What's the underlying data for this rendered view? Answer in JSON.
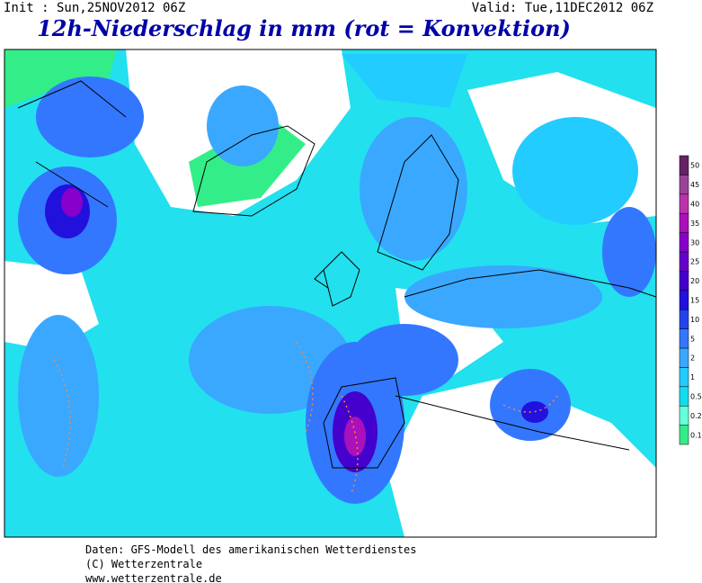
{
  "header": {
    "init": "Init : Sun,25NOV2012 06Z",
    "valid": "Valid: Tue,11DEC2012 06Z",
    "title": "12h-Niederschlag in mm (rot = Konvektion)"
  },
  "legend": {
    "levels": [
      0.1,
      0.2,
      0.5,
      1,
      2,
      5,
      10,
      15,
      20,
      25,
      30,
      35,
      40,
      45,
      50
    ],
    "colors": [
      "#33ee88",
      "#66ffdd",
      "#11ddee",
      "#22ccff",
      "#3aa8ff",
      "#3377ff",
      "#2244ee",
      "#2211dd",
      "#4400cc",
      "#6600cc",
      "#8800cc",
      "#aa11bb",
      "#bb33aa",
      "#994499",
      "#662266"
    ]
  },
  "footer": {
    "lines": [
      "Daten: GFS-Modell des amerikanischen Wetterdienstes",
      "(C) Wetterzentrale",
      "www.wetterzentrale.de"
    ]
  }
}
